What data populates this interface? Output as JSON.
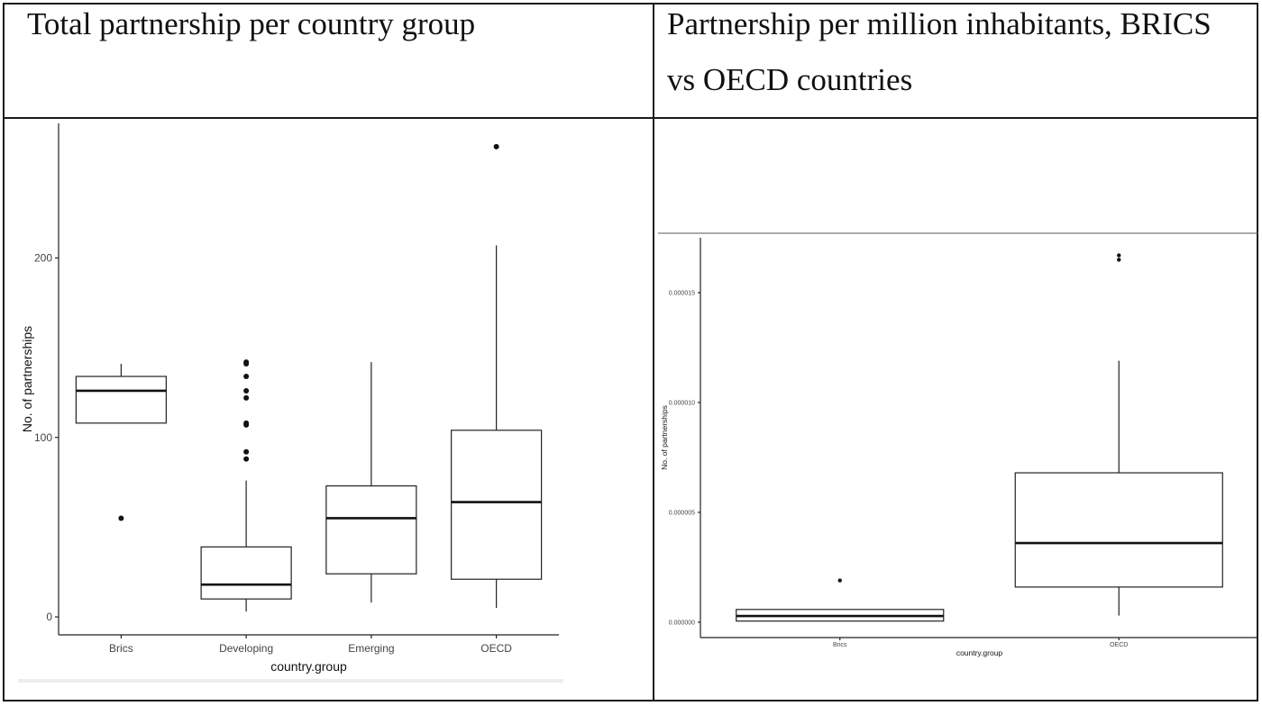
{
  "captions": {
    "left": "Total partnership per country group",
    "right": "Partnership per million inhabitants, BRICS vs OECD countries"
  },
  "chart_data": [
    {
      "type": "boxplot",
      "xlabel": "country.group",
      "ylabel": "No. of partnerships",
      "ylim": [
        -10,
        275
      ],
      "yticks": [
        0,
        100,
        200
      ],
      "ytick_labels": [
        "0",
        "100",
        "200"
      ],
      "categories": [
        "Brics",
        "Developing",
        "Emerging",
        "OECD"
      ],
      "boxes": [
        {
          "category": "Brics",
          "min": 108,
          "q1": 108,
          "median": 126,
          "q3": 134,
          "max": 141,
          "outliers": [
            55
          ]
        },
        {
          "category": "Developing",
          "min": 3,
          "q1": 10,
          "median": 18,
          "q3": 39,
          "max": 76,
          "outliers": [
            88,
            92,
            107,
            108,
            122,
            126,
            134,
            141,
            142
          ]
        },
        {
          "category": "Emerging",
          "min": 8,
          "q1": 24,
          "median": 55,
          "q3": 73,
          "max": 142,
          "outliers": []
        },
        {
          "category": "OECD",
          "min": 5,
          "q1": 21,
          "median": 64,
          "q3": 104,
          "max": 207,
          "outliers": [
            262
          ]
        }
      ],
      "grid": false
    },
    {
      "type": "boxplot",
      "xlabel": "country.group",
      "ylabel": "No. of partnerships",
      "ylim": [
        -7e-07,
        1.75e-05
      ],
      "yticks": [
        0,
        5e-06,
        1e-05,
        1.5e-05
      ],
      "ytick_labels": [
        "0.000000",
        "0.000005",
        "0.000010",
        "0.000015"
      ],
      "categories": [
        "Brics",
        "OECD"
      ],
      "boxes": [
        {
          "category": "Brics",
          "min": 5e-08,
          "q1": 5e-08,
          "median": 2.8e-07,
          "q3": 5.8e-07,
          "max": 5.8e-07,
          "outliers": [
            1.9e-06
          ]
        },
        {
          "category": "OECD",
          "min": 3e-07,
          "q1": 1.6e-06,
          "median": 3.6e-06,
          "q3": 6.8e-06,
          "max": 1.19e-05,
          "outliers": [
            1.65e-05,
            1.67e-05
          ]
        }
      ],
      "grid": false
    }
  ]
}
